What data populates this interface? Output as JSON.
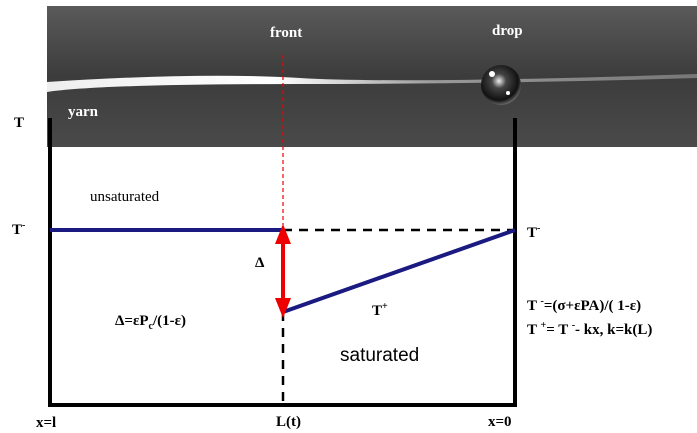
{
  "photo": {
    "front": "front",
    "drop": "drop",
    "yarn": "yarn"
  },
  "labels": {
    "t_top": "T",
    "t_minus_left": {
      "base": "T",
      "sup": "-"
    },
    "unsaturated": "unsaturated",
    "delta": "Δ",
    "delta_formula": {
      "a": "Δ=εP",
      "sub": "c",
      "b": "/(1-ε)"
    },
    "t_plus": {
      "base": "T",
      "sup": "+"
    },
    "saturated": "saturated",
    "t_minus_right": {
      "base": "T",
      "sup": "-"
    },
    "formula1": {
      "base": "T ",
      "sup": "-",
      "rest": "=(σ+εPA)/( 1-ε)"
    },
    "formula2": {
      "base": "T ",
      "sup": "+",
      "rest": "= T ",
      "sup2": "-",
      "rest2": "- kx, k=k(L)"
    },
    "x_l": "x=l",
    "l_t": "L(t)",
    "x_0": "x=0"
  }
}
